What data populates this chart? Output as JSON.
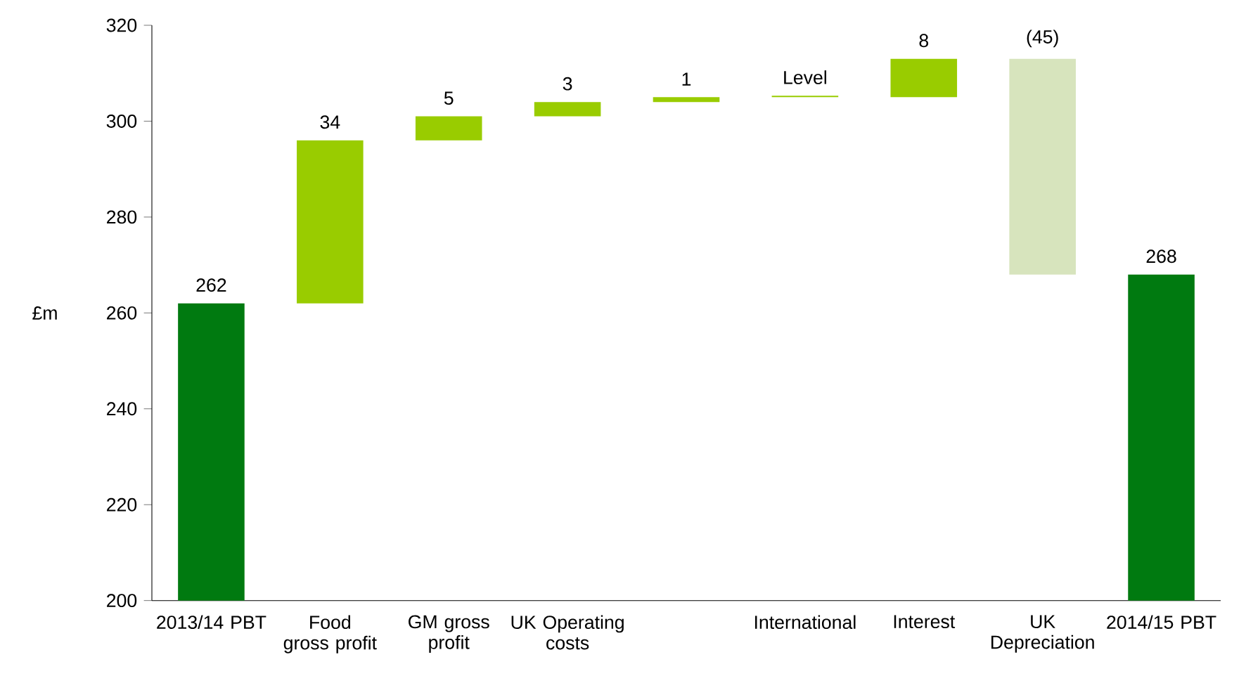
{
  "chart_data": {
    "type": "bar",
    "ylabel": "£m",
    "categories": [
      "2013/14 PBT",
      "Food gross profit",
      "GM gross profit",
      "UK Operating costs",
      null,
      "International",
      "Interest",
      "UK Depreciation",
      "2014/15 PBT"
    ],
    "base": [
      200,
      262,
      296,
      301,
      304,
      305,
      305,
      313,
      200
    ],
    "values": [
      62,
      34,
      5,
      3,
      1,
      0.3,
      8,
      -45,
      68
    ],
    "value_labels": [
      "262",
      "34",
      "5",
      "3",
      "1",
      "Level",
      "8",
      "(45)",
      "268"
    ],
    "colors": [
      "#007a10",
      "#99cc00",
      "#99cc00",
      "#99cc00",
      "#99cc00",
      "#99cc00",
      "#99cc00",
      "#d7e4bd",
      "#007a10"
    ],
    "ylim": [
      200,
      320
    ],
    "yticks": [
      200,
      220,
      240,
      260,
      280,
      300,
      320
    ],
    "grid": false
  }
}
